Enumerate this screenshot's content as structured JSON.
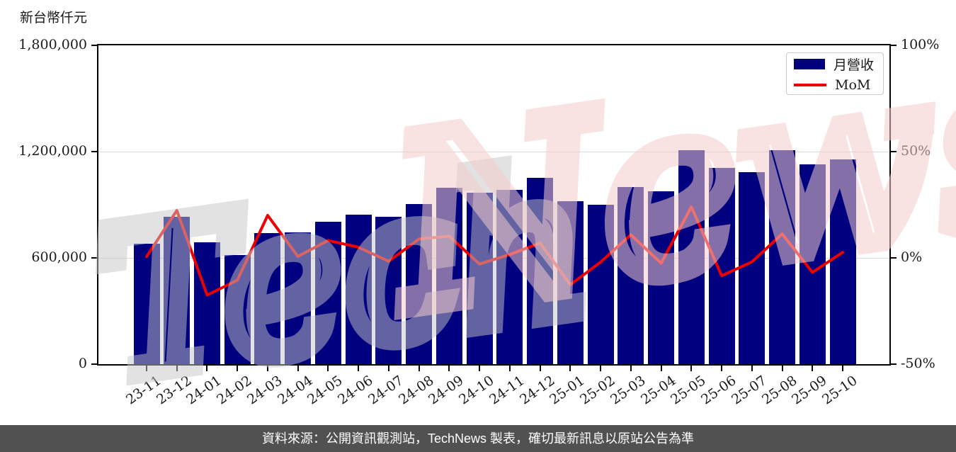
{
  "footer": {
    "text": "資料來源：公開資訊觀測站，TechNews 製表，確切最新訊息以原站公告為準",
    "background": "#515151",
    "text_color": "#ffffff"
  },
  "legend": {
    "items": [
      {
        "label": "月營收",
        "type": "bar",
        "color": "#010180"
      },
      {
        "label": "MoM",
        "type": "line",
        "color": "#ee0000"
      }
    ]
  },
  "watermark": {
    "text_left": "Tech",
    "text_right": "News",
    "color_left": "rgba(198,198,198,0.50)",
    "color_right": "rgba(243,202,202,0.55)"
  },
  "chart_data": {
    "type": "bar+line",
    "title": "",
    "categories": [
      "23-11",
      "23-12",
      "24-01",
      "24-02",
      "24-03",
      "24-04",
      "24-05",
      "24-06",
      "24-07",
      "24-08",
      "24-09",
      "24-10",
      "24-11",
      "24-12",
      "25-01",
      "25-02",
      "25-03",
      "25-04",
      "25-05",
      "25-06",
      "25-07",
      "25-08",
      "25-09",
      "25-10"
    ],
    "series": [
      {
        "name": "月營收",
        "type": "bar",
        "axis": "left",
        "color": "#010180",
        "values": [
          682000,
          834000,
          688000,
          616000,
          739000,
          744000,
          805000,
          845000,
          831000,
          905000,
          997000,
          968000,
          984000,
          1053000,
          920000,
          902000,
          1000000,
          975000,
          1209000,
          1108000,
          1086000,
          1209000,
          1127000,
          1156000
        ]
      },
      {
        "name": "MoM",
        "type": "line",
        "axis": "right",
        "color": "#ee0000",
        "values_percent": [
          0.6,
          22.3,
          -17.5,
          -10.5,
          20.0,
          0.7,
          8.2,
          5.0,
          -1.6,
          8.9,
          10.2,
          -2.9,
          1.6,
          7.0,
          -12.6,
          -2.0,
          10.9,
          -2.5,
          24.0,
          -8.4,
          -1.9,
          11.3,
          -6.8,
          2.6
        ]
      }
    ],
    "left_axis": {
      "title": "新台幣仟元",
      "min": 0,
      "max": 1800000,
      "ticks": [
        {
          "value": 0,
          "label": "0"
        },
        {
          "value": 600000,
          "label": "600,000"
        },
        {
          "value": 1200000,
          "label": "1,200,000"
        },
        {
          "value": 1800000,
          "label": "1,800,000"
        }
      ]
    },
    "right_axis": {
      "min": -50,
      "max": 100,
      "ticks": [
        {
          "value": -50,
          "label": "-50%"
        },
        {
          "value": 0,
          "label": "0%"
        },
        {
          "value": 50,
          "label": "50%"
        },
        {
          "value": 100,
          "label": "100%"
        }
      ]
    },
    "grid": "horizontal",
    "legend_position": "top-right"
  }
}
